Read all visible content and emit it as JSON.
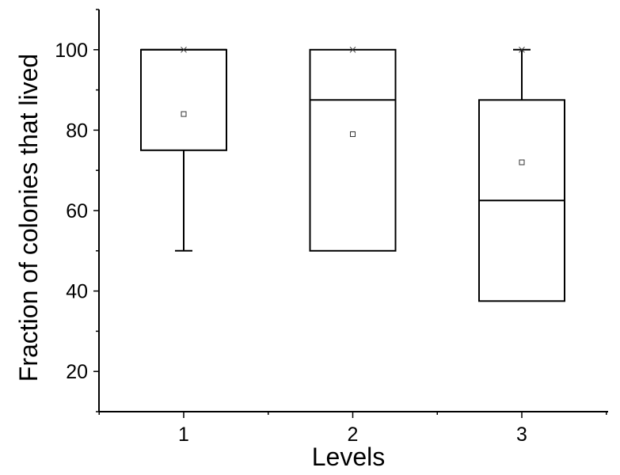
{
  "chart_data": {
    "type": "box",
    "xlabel": "Levels",
    "ylabel": "Fraction of colonies that lived",
    "ylim": [
      10,
      110
    ],
    "yticks": [
      20,
      40,
      60,
      80,
      100
    ],
    "categories": [
      "1",
      "2",
      "3"
    ],
    "boxes": [
      {
        "category": "1",
        "whisker_low": 50,
        "q1": 75,
        "median": 100,
        "q3": 100,
        "whisker_high": 100,
        "mean": 84,
        "max_marker": 100
      },
      {
        "category": "2",
        "whisker_low": 50,
        "q1": 50,
        "median": 87.5,
        "q3": 100,
        "whisker_high": 100,
        "mean": 79,
        "max_marker": 100
      },
      {
        "category": "3",
        "whisker_low": 37.5,
        "q1": 37.5,
        "median": 62.5,
        "q3": 87.5,
        "whisker_high": 100,
        "mean": 72,
        "max_marker": 100
      }
    ],
    "grid": false,
    "legend": "none"
  }
}
